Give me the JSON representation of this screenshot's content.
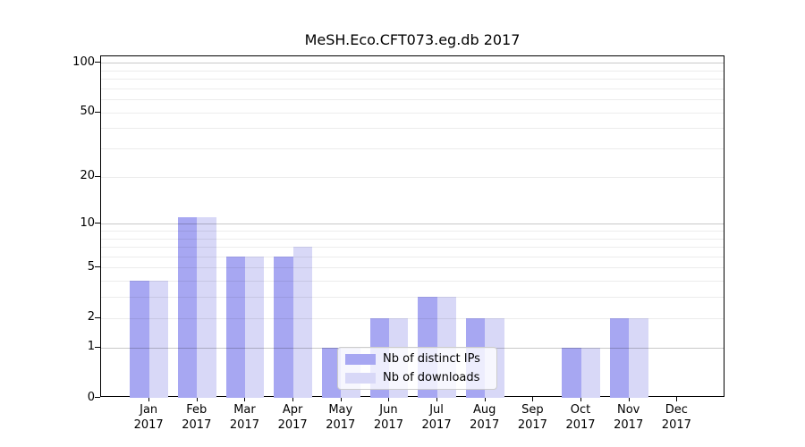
{
  "chart_data": {
    "type": "bar",
    "title": "MeSH.Eco.CFT073.eg.db 2017",
    "categories": [
      "Jan",
      "Feb",
      "Mar",
      "Apr",
      "May",
      "Jun",
      "Jul",
      "Aug",
      "Sep",
      "Oct",
      "Nov",
      "Dec"
    ],
    "category_year": "2017",
    "series": [
      {
        "name": "Nb of distinct IPs",
        "color": "#a7a7f2",
        "values": [
          4,
          11,
          6,
          6,
          1,
          2,
          3,
          2,
          0,
          1,
          2,
          0
        ]
      },
      {
        "name": "Nb of downloads",
        "color": "#d8d8f7",
        "values": [
          4,
          11,
          6,
          7,
          1,
          2,
          3,
          2,
          0,
          1,
          2,
          0
        ]
      }
    ],
    "ylabel": "",
    "xlabel": "",
    "y_scale": "log10(1+v)",
    "y_ticks": [
      0,
      1,
      2,
      5,
      10,
      20,
      50,
      100
    ],
    "y_major_gridlines": [
      1,
      10,
      100
    ],
    "y_minor_gridlines": [
      2,
      3,
      4,
      5,
      6,
      7,
      8,
      9,
      20,
      30,
      40,
      50,
      60,
      70,
      80,
      90
    ],
    "ylim": [
      0,
      110
    ],
    "grid": true,
    "legend_position": "lower center"
  },
  "colors": {
    "bar_distinct_ips": "#a7a7f2",
    "bar_downloads": "#d8d8f7",
    "major_grid": "#c9c9c9",
    "minor_grid": "#ececec",
    "axis": "#000000",
    "background": "#ffffff"
  }
}
